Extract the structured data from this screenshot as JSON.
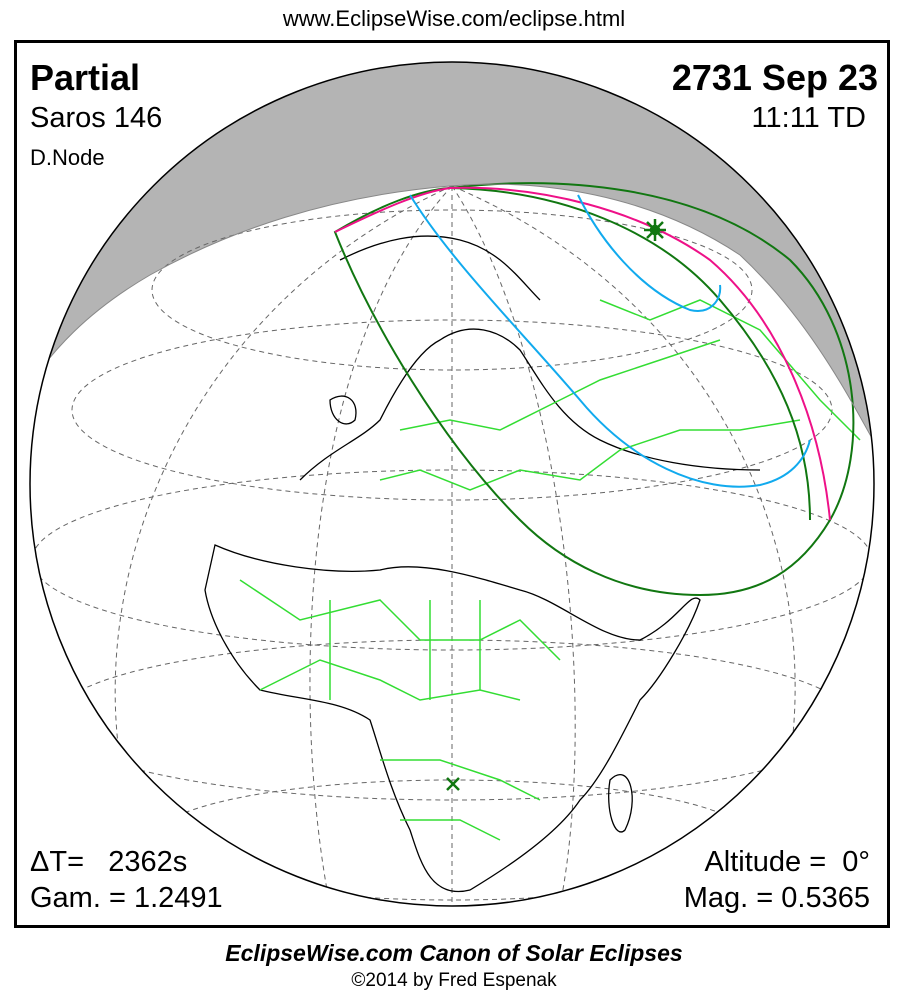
{
  "header": {
    "url": "www.EclipseWise.com/eclipse.html"
  },
  "eclipse": {
    "type": "Partial",
    "saros": "Saros 146",
    "node": "D.Node",
    "date": "2731 Sep 23",
    "time": "11:11 TD",
    "delta_t": "ΔT=   2362s",
    "gamma": "Gam. = 1.2491",
    "altitude": "Altitude =  0°",
    "magnitude": "Mag. = 0.5365"
  },
  "map": {
    "projection": "orthographic globe",
    "markers": {
      "greatest_eclipse": "star-icon",
      "sub_solar_point": "x-icon"
    },
    "colors": {
      "night": "#b4b4b4",
      "borders": "#33dd33",
      "path_limits": "#117711",
      "max_curve": "#ee1188",
      "rise_set": "#11aaee"
    }
  },
  "footer": {
    "title": "EclipseWise.com Canon of Solar Eclipses",
    "copyright": "©2014 by Fred Espenak"
  }
}
